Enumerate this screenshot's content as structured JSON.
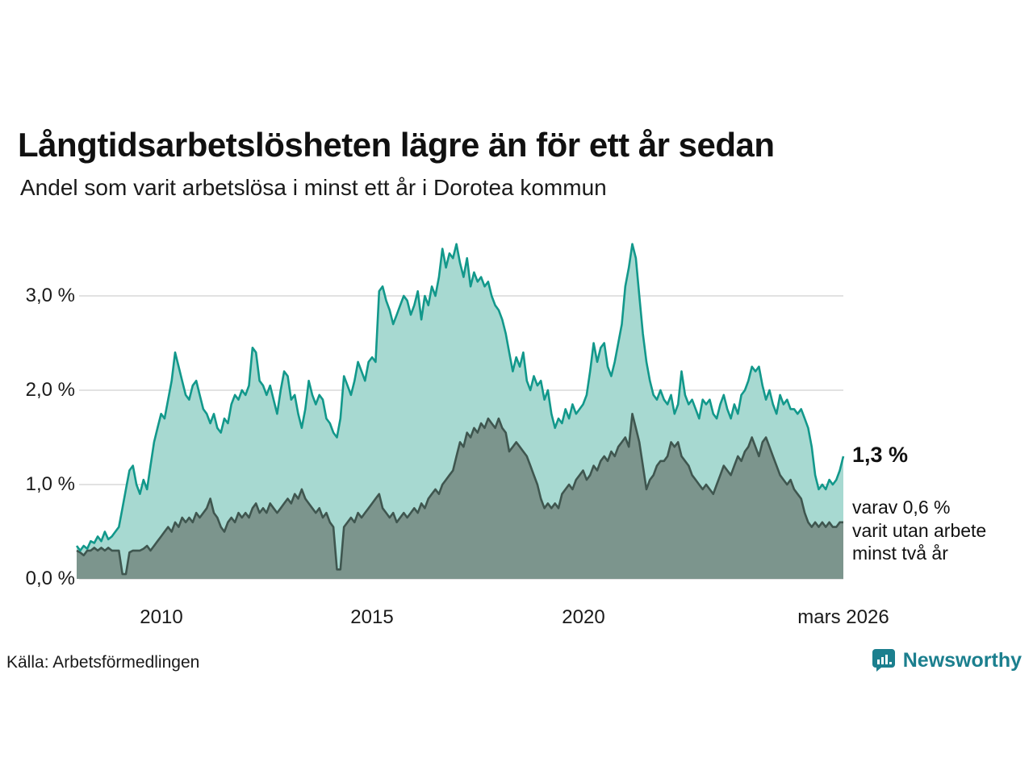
{
  "chart_data": {
    "type": "area",
    "title": "Långtidsarbetslösheten lägre än för ett år sedan",
    "subtitle": "Andel som varit arbetslösa i minst ett år i Dorotea kommun",
    "unit": "%",
    "x_range": {
      "start": "2008-01",
      "end": "2026-03",
      "frequency": "monthly"
    },
    "ylim": [
      0,
      3.66
    ],
    "grid": "horizontal",
    "yticks": [
      {
        "value": 0,
        "label": "0,0 %"
      },
      {
        "value": 1,
        "label": "1,0 %"
      },
      {
        "value": 2,
        "label": "2,0 %"
      },
      {
        "value": 3,
        "label": "3,0 %"
      }
    ],
    "xticks": [
      {
        "index": 24,
        "label": "2010"
      },
      {
        "index": 84,
        "label": "2015"
      },
      {
        "index": 144,
        "label": "2020"
      },
      {
        "index": 218,
        "label": "mars 2026"
      }
    ],
    "series": [
      {
        "id": "minst-ett-ar",
        "name": "Arbetslösa minst ett år",
        "color": "#12988b",
        "fill": "#a7d9d1",
        "values": [
          0.35,
          0.3,
          0.35,
          0.32,
          0.4,
          0.38,
          0.45,
          0.4,
          0.5,
          0.42,
          0.45,
          0.5,
          0.55,
          0.75,
          0.95,
          1.15,
          1.2,
          1.0,
          0.9,
          1.05,
          0.95,
          1.2,
          1.45,
          1.6,
          1.75,
          1.7,
          1.9,
          2.1,
          2.4,
          2.25,
          2.1,
          1.95,
          1.9,
          2.05,
          2.1,
          1.95,
          1.8,
          1.75,
          1.65,
          1.75,
          1.6,
          1.55,
          1.7,
          1.65,
          1.85,
          1.95,
          1.9,
          2.0,
          1.95,
          2.05,
          2.45,
          2.4,
          2.1,
          2.05,
          1.95,
          2.05,
          1.9,
          1.75,
          2.0,
          2.2,
          2.15,
          1.9,
          1.95,
          1.75,
          1.6,
          1.8,
          2.1,
          1.95,
          1.85,
          1.95,
          1.9,
          1.7,
          1.65,
          1.55,
          1.5,
          1.7,
          2.15,
          2.05,
          1.95,
          2.1,
          2.3,
          2.2,
          2.1,
          2.3,
          2.35,
          2.3,
          3.05,
          3.1,
          2.95,
          2.85,
          2.7,
          2.8,
          2.9,
          3.0,
          2.95,
          2.8,
          2.9,
          3.05,
          2.75,
          3.0,
          2.9,
          3.1,
          3.0,
          3.2,
          3.5,
          3.3,
          3.45,
          3.4,
          3.55,
          3.35,
          3.2,
          3.4,
          3.1,
          3.25,
          3.15,
          3.2,
          3.1,
          3.15,
          3.0,
          2.9,
          2.85,
          2.75,
          2.6,
          2.4,
          2.2,
          2.35,
          2.25,
          2.4,
          2.1,
          2.0,
          2.15,
          2.05,
          2.1,
          1.9,
          2.0,
          1.75,
          1.6,
          1.7,
          1.65,
          1.8,
          1.7,
          1.85,
          1.75,
          1.8,
          1.85,
          1.95,
          2.2,
          2.5,
          2.3,
          2.45,
          2.5,
          2.25,
          2.15,
          2.3,
          2.5,
          2.7,
          3.1,
          3.3,
          3.55,
          3.4,
          3.0,
          2.6,
          2.3,
          2.1,
          1.95,
          1.9,
          2.0,
          1.9,
          1.85,
          1.95,
          1.75,
          1.85,
          2.2,
          1.95,
          1.85,
          1.9,
          1.8,
          1.7,
          1.9,
          1.85,
          1.9,
          1.75,
          1.7,
          1.85,
          1.95,
          1.8,
          1.7,
          1.85,
          1.75,
          1.95,
          2.0,
          2.1,
          2.25,
          2.2,
          2.25,
          2.05,
          1.9,
          2.0,
          1.85,
          1.75,
          1.95,
          1.85,
          1.9,
          1.8,
          1.8,
          1.75,
          1.8,
          1.7,
          1.6,
          1.4,
          1.1,
          0.95,
          1.0,
          0.95,
          1.05,
          1.0,
          1.05,
          1.15,
          1.3
        ]
      },
      {
        "id": "minst-tva-ar",
        "name": "Utan arbete minst två år",
        "color": "#3f564f",
        "fill": "#7c958d",
        "values": [
          0.3,
          0.28,
          0.25,
          0.3,
          0.3,
          0.33,
          0.3,
          0.33,
          0.3,
          0.33,
          0.3,
          0.3,
          0.3,
          0.05,
          0.05,
          0.28,
          0.3,
          0.3,
          0.3,
          0.32,
          0.35,
          0.3,
          0.35,
          0.4,
          0.45,
          0.5,
          0.55,
          0.5,
          0.6,
          0.55,
          0.65,
          0.6,
          0.65,
          0.6,
          0.7,
          0.65,
          0.7,
          0.75,
          0.85,
          0.7,
          0.65,
          0.55,
          0.5,
          0.6,
          0.65,
          0.6,
          0.7,
          0.65,
          0.7,
          0.65,
          0.75,
          0.8,
          0.7,
          0.75,
          0.7,
          0.8,
          0.75,
          0.7,
          0.75,
          0.8,
          0.85,
          0.8,
          0.9,
          0.85,
          0.95,
          0.85,
          0.8,
          0.75,
          0.7,
          0.75,
          0.65,
          0.7,
          0.6,
          0.55,
          0.1,
          0.1,
          0.55,
          0.6,
          0.65,
          0.6,
          0.7,
          0.65,
          0.7,
          0.75,
          0.8,
          0.85,
          0.9,
          0.75,
          0.7,
          0.65,
          0.7,
          0.6,
          0.65,
          0.7,
          0.65,
          0.7,
          0.75,
          0.7,
          0.8,
          0.75,
          0.85,
          0.9,
          0.95,
          0.9,
          1.0,
          1.05,
          1.1,
          1.15,
          1.3,
          1.45,
          1.4,
          1.55,
          1.5,
          1.6,
          1.55,
          1.65,
          1.6,
          1.7,
          1.65,
          1.6,
          1.7,
          1.6,
          1.55,
          1.35,
          1.4,
          1.45,
          1.4,
          1.35,
          1.3,
          1.2,
          1.1,
          1.0,
          0.85,
          0.75,
          0.8,
          0.75,
          0.8,
          0.75,
          0.9,
          0.95,
          1.0,
          0.95,
          1.05,
          1.1,
          1.15,
          1.05,
          1.1,
          1.2,
          1.15,
          1.25,
          1.3,
          1.25,
          1.35,
          1.3,
          1.4,
          1.45,
          1.5,
          1.4,
          1.75,
          1.6,
          1.45,
          1.2,
          0.95,
          1.05,
          1.1,
          1.2,
          1.25,
          1.25,
          1.3,
          1.45,
          1.4,
          1.45,
          1.3,
          1.25,
          1.2,
          1.1,
          1.05,
          1.0,
          0.95,
          1.0,
          0.95,
          0.9,
          1.0,
          1.1,
          1.2,
          1.15,
          1.1,
          1.2,
          1.3,
          1.25,
          1.35,
          1.4,
          1.5,
          1.4,
          1.3,
          1.45,
          1.5,
          1.4,
          1.3,
          1.2,
          1.1,
          1.05,
          1.0,
          1.05,
          0.95,
          0.9,
          0.85,
          0.7,
          0.6,
          0.55,
          0.6,
          0.55,
          0.6,
          0.55,
          0.6,
          0.55,
          0.55,
          0.6,
          0.6
        ]
      }
    ],
    "annotations": {
      "end_label": "1,3 %",
      "sub_lines": [
        "varav 0,6 %",
        "varit utan arbete",
        "minst två år"
      ]
    }
  },
  "footer": {
    "source": "Källa: Arbetsförmedlingen",
    "brand": "Newsworthy",
    "brand_color": "#1b7f8e"
  }
}
